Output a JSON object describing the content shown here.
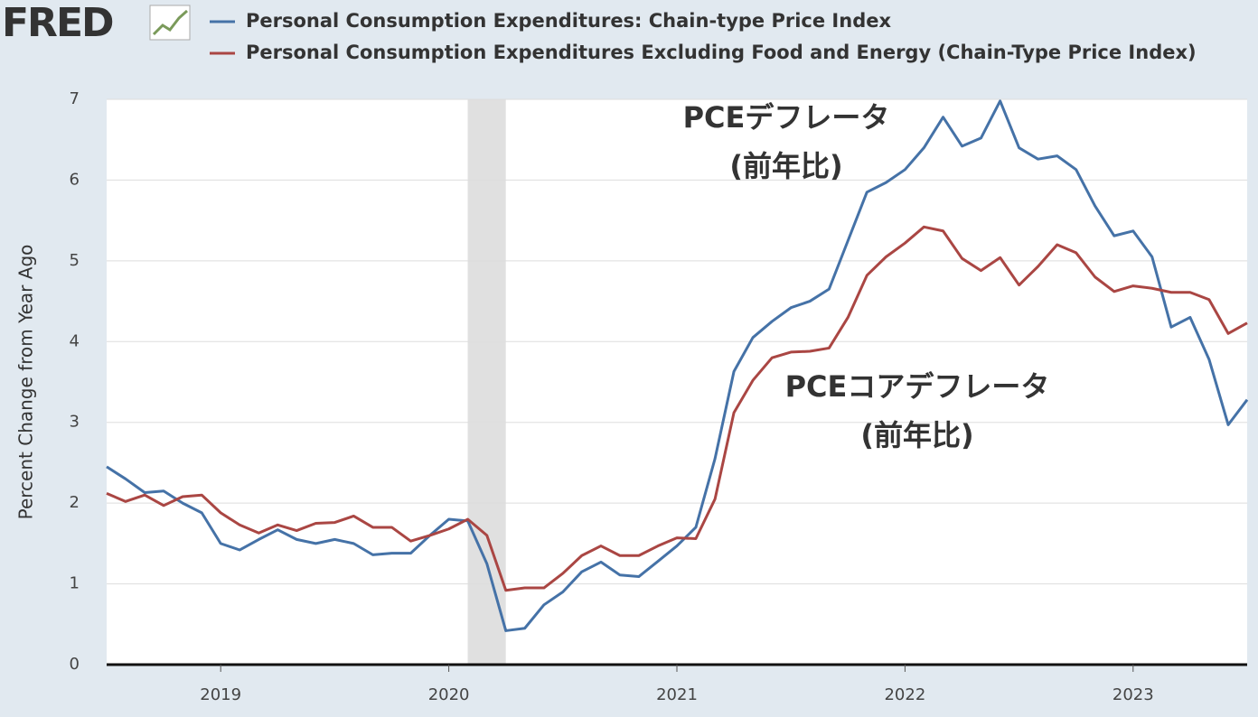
{
  "brand": "FRED",
  "chart_data": {
    "type": "line",
    "y_label": "Percent Change from Year Ago",
    "x": [
      2018.5,
      2018.583,
      2018.667,
      2018.75,
      2018.833,
      2018.917,
      2019.0,
      2019.083,
      2019.167,
      2019.25,
      2019.333,
      2019.417,
      2019.5,
      2019.583,
      2019.667,
      2019.75,
      2019.833,
      2019.917,
      2020.0,
      2020.083,
      2020.167,
      2020.25,
      2020.333,
      2020.417,
      2020.5,
      2020.583,
      2020.667,
      2020.75,
      2020.833,
      2020.917,
      2021.0,
      2021.083,
      2021.167,
      2021.25,
      2021.333,
      2021.417,
      2021.5,
      2021.583,
      2021.667,
      2021.75,
      2021.833,
      2021.917,
      2022.0,
      2022.083,
      2022.167,
      2022.25,
      2022.333,
      2022.417,
      2022.5,
      2022.583,
      2022.667,
      2022.75,
      2022.833,
      2022.917,
      2023.0,
      2023.083,
      2023.167,
      2023.25,
      2023.333,
      2023.417,
      2023.5
    ],
    "series": [
      {
        "name": "Personal Consumption Expenditures: Chain-type Price Index",
        "color": "#4572a7",
        "values": [
          2.45,
          2.3,
          2.13,
          2.15,
          2.0,
          1.88,
          1.5,
          1.42,
          1.55,
          1.67,
          1.55,
          1.5,
          1.55,
          1.5,
          1.36,
          1.38,
          1.38,
          1.6,
          1.8,
          1.78,
          1.25,
          0.42,
          0.45,
          0.74,
          0.9,
          1.15,
          1.27,
          1.11,
          1.09,
          1.28,
          1.47,
          1.7,
          2.55,
          3.63,
          4.05,
          4.25,
          4.42,
          4.5,
          4.65,
          5.25,
          5.85,
          5.97,
          6.13,
          6.4,
          6.78,
          6.42,
          6.52,
          6.98,
          6.4,
          6.26,
          6.3,
          6.13,
          5.68,
          5.31,
          5.37,
          5.05,
          4.18,
          4.3,
          3.78,
          2.97,
          3.28
        ]
      },
      {
        "name": "Personal Consumption Expenditures Excluding Food and Energy (Chain-Type Price Index)",
        "color": "#aa4643",
        "values": [
          2.12,
          2.02,
          2.1,
          1.97,
          2.08,
          2.1,
          1.88,
          1.73,
          1.63,
          1.73,
          1.66,
          1.75,
          1.76,
          1.84,
          1.7,
          1.7,
          1.53,
          1.6,
          1.68,
          1.8,
          1.6,
          0.92,
          0.95,
          0.95,
          1.13,
          1.35,
          1.47,
          1.35,
          1.35,
          1.47,
          1.57,
          1.56,
          2.05,
          3.12,
          3.52,
          3.8,
          3.87,
          3.88,
          3.92,
          4.3,
          4.82,
          5.05,
          5.22,
          5.42,
          5.37,
          5.03,
          4.88,
          5.04,
          4.7,
          4.93,
          5.2,
          5.1,
          4.8,
          4.62,
          4.69,
          4.66,
          4.61,
          4.61,
          4.52,
          4.1,
          4.23
        ]
      }
    ],
    "xlim": [
      2018.5,
      2023.5
    ],
    "xticks": [
      2019,
      2020,
      2021,
      2022,
      2023
    ],
    "ylim": [
      0,
      7
    ],
    "yticks": [
      0,
      1,
      2,
      3,
      4,
      5,
      6,
      7
    ],
    "grid": true,
    "recessions": [
      [
        2020.083,
        2020.25
      ]
    ],
    "annotations": [
      {
        "lines": [
          "PCEデフレータ",
          "(前年比)"
        ],
        "color": "#4f74ad"
      },
      {
        "lines": [
          "PCEコアデフレータ",
          "(前年比)"
        ],
        "color": "#a84540"
      }
    ]
  }
}
